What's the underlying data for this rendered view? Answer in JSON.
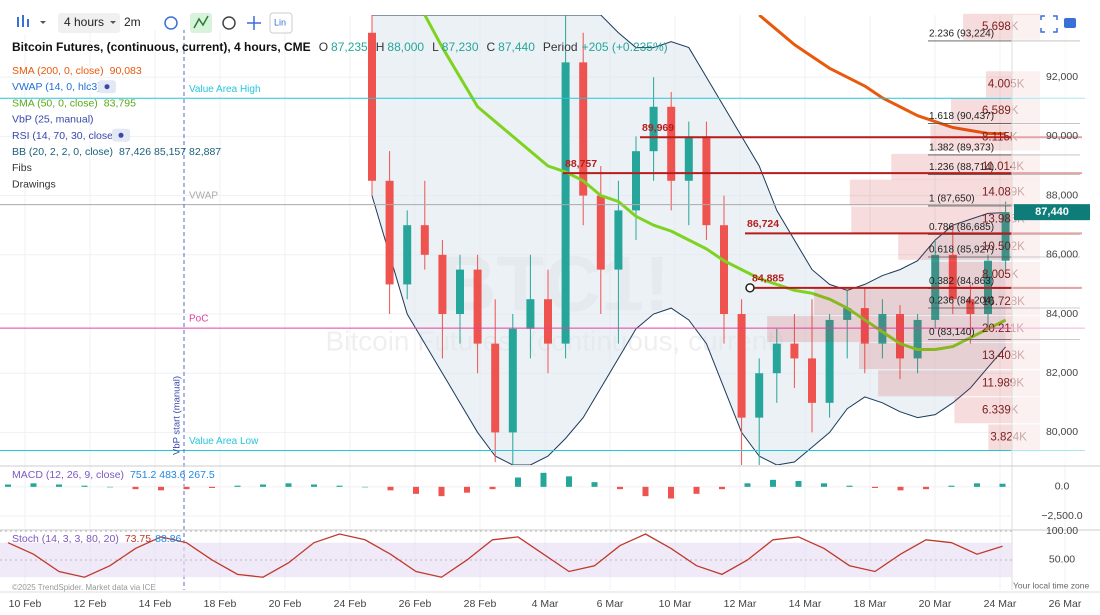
{
  "toolbar": {
    "interval": "4 hours",
    "range": "2m",
    "scale": "Lin"
  },
  "legend": {
    "title": "Bitcoin Futures, (continuous, current), 4 hours, CME",
    "o": "O",
    "o_value": "87,235",
    "h": "H",
    "h_value": "88,000",
    "l": "L",
    "l_value": "87,230",
    "c": "C",
    "c_value": "87,440",
    "period": "Period",
    "change": "+205 (+0.235%)",
    "others": [
      {
        "label": "VWAP (14, 0, hlc3)",
        "color": "#1e6fd9"
      },
      {
        "label": "VbP (25, manual)",
        "color": "#3949ab"
      },
      {
        "label": "RSI (14, 70, 30, close)",
        "color": "#3949ab"
      },
      {
        "label": "BB (20, 2, 2, 0, close)",
        "value": "87,426 85,157 82,887",
        "color": "#1a5f7a"
      },
      {
        "label": "Fibs",
        "color": "#333"
      },
      {
        "label": "Drawings",
        "color": "#333"
      }
    ]
  },
  "footer": {
    "copyright": "©2025 TrendSpider. Market data via ICE",
    "timezone": "Your local time zone"
  },
  "chart_data": [
    {
      "type": "candlestick",
      "watermark": "BTC1!",
      "watermark_sub": "Bitcoin Futures, (continuous, current)",
      "xticks": [
        "10 Feb",
        "12 Feb",
        "14 Feb",
        "18 Feb",
        "20 Feb",
        "24 Feb",
        "26 Feb",
        "28 Feb",
        "4 Mar",
        "6 Mar",
        "10 Mar",
        "12 Mar",
        "14 Mar",
        "18 Mar",
        "20 Mar",
        "24 Mar",
        "26 Mar"
      ],
      "open": [
        93500,
        88500,
        85000,
        87000,
        86000,
        84000,
        85500,
        83000,
        80000,
        83500,
        84500,
        83000,
        92500,
        88000,
        85500,
        87500,
        89500,
        91000,
        88500,
        90000,
        87000,
        84000,
        80500,
        82000,
        83000,
        82500,
        81000,
        83800,
        84200,
        83000,
        84000,
        82500,
        83800,
        86000,
        84500,
        84000,
        85800
      ],
      "high": [
        94100,
        89500,
        87500,
        88500,
        86500,
        86000,
        86000,
        84500,
        84000,
        86000,
        85500,
        94100,
        93500,
        89000,
        88500,
        90000,
        92000,
        91500,
        90500,
        90500,
        88000,
        84500,
        82500,
        83500,
        84000,
        84500,
        84000,
        84800,
        84900,
        84500,
        84300,
        84000,
        86500,
        87000,
        85000,
        86000,
        87800
      ],
      "low": [
        88000,
        84000,
        84500,
        85500,
        82500,
        83000,
        82000,
        79000,
        78900,
        82500,
        82000,
        82500,
        87000,
        84000,
        83000,
        86500,
        88500,
        87500,
        87000,
        86500,
        83000,
        78900,
        78900,
        81000,
        81500,
        80000,
        80500,
        82500,
        82000,
        82500,
        81800,
        82000,
        83500,
        84000,
        83000,
        83500,
        85500
      ],
      "close": [
        88500,
        85000,
        87000,
        86000,
        84000,
        85500,
        83000,
        80000,
        83500,
        84500,
        83000,
        92500,
        88000,
        85500,
        87500,
        89500,
        91000,
        88500,
        90000,
        87000,
        84000,
        80500,
        82000,
        83000,
        82500,
        81000,
        83800,
        84200,
        83000,
        84000,
        82500,
        83800,
        86000,
        84500,
        84000,
        85800,
        87440
      ],
      "up_color": "#26a69a",
      "down_color": "#ef5350",
      "series": [
        {
          "name": "SMA (200, 0, close)",
          "value_label": "90,083",
          "color": "#e8590c",
          "values": [
            null,
            null,
            null,
            null,
            null,
            null,
            null,
            null,
            null,
            null,
            null,
            null,
            null,
            null,
            null,
            null,
            null,
            null,
            null,
            null,
            null,
            null,
            94100,
            93600,
            93100,
            92700,
            92300,
            92000,
            91700,
            91300,
            91000,
            90700,
            90500,
            90300,
            90200,
            90100,
            90083
          ]
        },
        {
          "name": "SMA (50, 0, close)",
          "value_label": "83,795",
          "color": "#7ed321",
          "values": [
            null,
            null,
            null,
            94100,
            93000,
            92000,
            91000,
            90500,
            90000,
            89500,
            89000,
            88800,
            88500,
            88000,
            87800,
            87300,
            87000,
            86800,
            86500,
            86200,
            85800,
            85500,
            85200,
            85000,
            84800,
            84700,
            84500,
            84200,
            83800,
            83400,
            83000,
            82800,
            82800,
            82900,
            83200,
            83500,
            83795
          ]
        }
      ],
      "bands": {
        "color": "#1a3a5a",
        "upper": [
          94100,
          94100,
          94100,
          94100,
          94100,
          94100,
          94100,
          94100,
          94100,
          94100,
          94100,
          94100,
          94100,
          94100,
          93500,
          93000,
          93000,
          93200,
          93000,
          92000,
          91000,
          90000,
          89000,
          87500,
          86500,
          85500,
          85000,
          84800,
          85000,
          85300,
          85500,
          85800,
          86500,
          87000,
          87200,
          87400,
          87426
        ],
        "lower": [
          88000,
          86000,
          84000,
          83000,
          82000,
          81000,
          80000,
          79200,
          78900,
          78900,
          79200,
          79800,
          80500,
          81500,
          82500,
          83500,
          84000,
          84200,
          83800,
          83000,
          81500,
          80000,
          79200,
          78900,
          79000,
          79500,
          80000,
          80800,
          81200,
          81000,
          80700,
          80500,
          80600,
          81000,
          81500,
          82200,
          82887
        ]
      },
      "ylim": [
        78900,
        94100
      ],
      "yticks": [
        {
          "value": 80000,
          "label": "80,000"
        },
        {
          "value": 82000,
          "label": "82,000"
        },
        {
          "value": 84000,
          "label": "84,000"
        },
        {
          "value": 86000,
          "label": "86,000"
        },
        {
          "value": 88000,
          "label": "88,000"
        },
        {
          "value": 90000,
          "label": "90,000"
        },
        {
          "value": 92000,
          "label": "92,000"
        }
      ],
      "last_price": {
        "value": 87440,
        "label": "87,440"
      },
      "grid": true,
      "lines": [
        {
          "value": 91288,
          "label": "Value Area High",
          "color": "#26c6da"
        },
        {
          "value": 87695,
          "label": "VWAP",
          "color": "#aaaaaa"
        },
        {
          "value": 83525,
          "label": "PoC",
          "color": "#e040a0"
        },
        {
          "value": 79390,
          "label": "Value Area Low",
          "color": "#26c6da"
        }
      ],
      "vbp_start": "VbP start (manual)",
      "fibs": [
        {
          "value": 93224,
          "label": "2.236 (93,224)"
        },
        {
          "value": 90437,
          "label": "1.618 (90,437)"
        },
        {
          "value": 89373,
          "label": "1.382 (89,373)"
        },
        {
          "value": 88714,
          "label": "1.236 (88,714)"
        },
        {
          "value": 87650,
          "label": "1 (87,650)"
        },
        {
          "value": 86685,
          "label": "0.786 (86,685)"
        },
        {
          "value": 85927,
          "label": "0.618 (85,927)"
        },
        {
          "value": 84863,
          "label": "0.382 (84,863)"
        },
        {
          "value": 84204,
          "label": "0.236 (84,204)"
        },
        {
          "value": 83140,
          "label": "0 (83,140)"
        }
      ],
      "levels": [
        {
          "value": 89969,
          "label": "89,969"
        },
        {
          "value": 88757,
          "label": "88,757"
        },
        {
          "value": 86724,
          "label": "86,724"
        },
        {
          "value": 84885,
          "label": "84,885"
        }
      ],
      "level_color": "#b71c1c",
      "vbp": [
        {
          "price": 93700,
          "volume": 5698,
          "label": "5.698K"
        },
        {
          "price": 91760,
          "volume": 4005,
          "label": "4.005K"
        },
        {
          "price": 90850,
          "volume": 6589,
          "label": "6.589K"
        },
        {
          "price": 89960,
          "volume": 8115,
          "label": "8.115K"
        },
        {
          "price": 88970,
          "volume": 11014,
          "label": "11.014K"
        },
        {
          "price": 88100,
          "volume": 14089,
          "label": "14.089K"
        },
        {
          "price": 87190,
          "volume": 13985,
          "label": "13.985K"
        },
        {
          "price": 86270,
          "volume": 10502,
          "label": "10.502K"
        },
        {
          "price": 85320,
          "volume": 8005,
          "label": "8.005K"
        },
        {
          "price": 84400,
          "volume": 16728,
          "label": "16.728K"
        },
        {
          "price": 83490,
          "volume": 20211,
          "label": "20.211K"
        },
        {
          "price": 82580,
          "volume": 13408,
          "label": "13.408K"
        },
        {
          "price": 81660,
          "volume": 11989,
          "label": "11.989K"
        },
        {
          "price": 80750,
          "volume": 6339,
          "label": "6.339K"
        },
        {
          "price": 79830,
          "volume": 3824,
          "label": "3.824K"
        }
      ]
    },
    {
      "type": "histogram-panel",
      "title": "MACD (12, 26, 9, close)",
      "value_label": "751.2 483.6 267.5",
      "values": [
        200,
        300,
        200,
        100,
        0,
        -200,
        -300,
        -200,
        -100,
        100,
        200,
        300,
        200,
        100,
        0,
        -300,
        -600,
        -800,
        -500,
        -200,
        800,
        1200,
        900,
        400,
        -200,
        -800,
        -1000,
        -600,
        -200,
        300,
        600,
        500,
        300,
        100,
        -100,
        -300,
        -200,
        100,
        300,
        267.5
      ],
      "up_color": "#26a69a",
      "down_color": "#ef5350",
      "ylim": [
        -3700,
        1700
      ],
      "yticks": [
        {
          "value": 0,
          "label": "0.0"
        },
        {
          "value": -2500,
          "label": "−2,500.0"
        }
      ]
    },
    {
      "type": "line-panel",
      "title": "Stoch (14, 3, 3, 80, 20)",
      "value_label": "73.75",
      "value_label2": "88.86",
      "values": [
        80,
        60,
        30,
        20,
        40,
        70,
        90,
        80,
        50,
        25,
        20,
        45,
        80,
        95,
        85,
        60,
        30,
        20,
        50,
        85,
        90,
        60,
        30,
        40,
        75,
        95,
        70,
        40,
        25,
        50,
        85,
        90,
        70,
        40,
        30,
        60,
        85,
        80,
        60,
        73.75
      ],
      "color": "#c0392b",
      "band": [
        20,
        80
      ],
      "ylim": [
        10,
        102
      ],
      "yticks": [
        {
          "value": 100,
          "label": "100.00"
        },
        {
          "value": 50,
          "label": "50.00"
        }
      ]
    }
  ]
}
